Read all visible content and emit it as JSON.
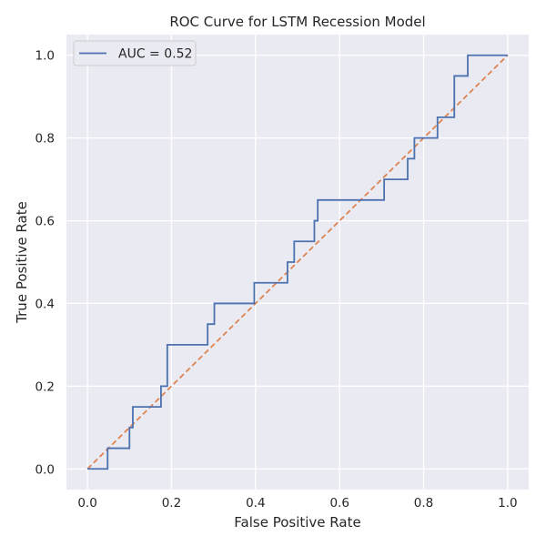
{
  "chart_data": {
    "type": "line",
    "title": "ROC Curve for LSTM Recession Model",
    "xlabel": "False Positive Rate",
    "ylabel": "True Positive Rate",
    "xlim": [
      -0.05,
      1.05
    ],
    "ylim": [
      -0.05,
      1.05
    ],
    "xticks": [
      0.0,
      0.2,
      0.4,
      0.6,
      0.8,
      1.0
    ],
    "xtick_labels": [
      "0.0",
      "0.2",
      "0.4",
      "0.6",
      "0.8",
      "1.0"
    ],
    "yticks": [
      0.0,
      0.2,
      0.4,
      0.6,
      0.8,
      1.0
    ],
    "ytick_labels": [
      "0.0",
      "0.2",
      "0.4",
      "0.6",
      "0.8",
      "1.0"
    ],
    "grid": true,
    "legend_position": "top-left",
    "series": [
      {
        "name": "AUC = 0.52",
        "style": "solid",
        "color": "#4c72b0",
        "x": [
          0.0,
          0.048,
          0.048,
          0.1,
          0.1,
          0.108,
          0.108,
          0.175,
          0.175,
          0.19,
          0.19,
          0.286,
          0.286,
          0.302,
          0.302,
          0.397,
          0.397,
          0.476,
          0.476,
          0.492,
          0.492,
          0.54,
          0.54,
          0.548,
          0.548,
          0.706,
          0.706,
          0.762,
          0.762,
          0.778,
          0.778,
          0.833,
          0.833,
          0.873,
          0.873,
          0.905,
          0.905,
          1.0
        ],
        "y": [
          0.0,
          0.0,
          0.05,
          0.05,
          0.1,
          0.1,
          0.15,
          0.15,
          0.2,
          0.2,
          0.3,
          0.3,
          0.35,
          0.35,
          0.4,
          0.4,
          0.45,
          0.45,
          0.5,
          0.5,
          0.55,
          0.55,
          0.6,
          0.6,
          0.65,
          0.65,
          0.7,
          0.7,
          0.75,
          0.75,
          0.8,
          0.8,
          0.85,
          0.85,
          0.95,
          0.95,
          1.0,
          1.0
        ]
      },
      {
        "style": "dashed",
        "color": "#dd8452",
        "x": [
          0.0,
          1.0
        ],
        "y": [
          0.0,
          1.0
        ]
      }
    ]
  },
  "colors": {
    "plot_background": "#eaeaf2",
    "grid": "#ffffff",
    "text": "#262626"
  }
}
